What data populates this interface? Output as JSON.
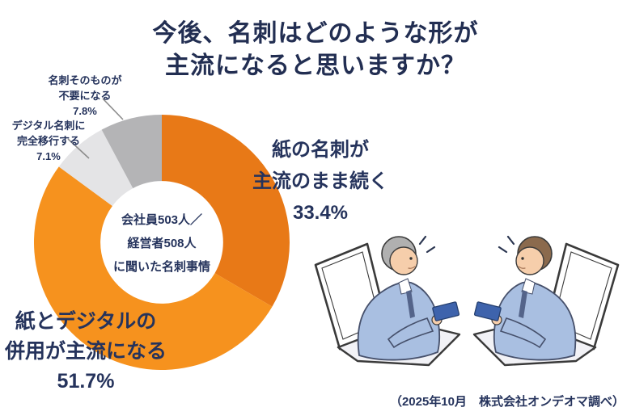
{
  "title": {
    "line1": "今後、名刺はどのような形が",
    "line2": "主流になると思いますか？"
  },
  "source_note": "（2025年10月　株式会社オンデオマ調べ）",
  "colors": {
    "text_navy": "#222E52",
    "orange_dark": "#E87917",
    "orange_bright": "#F6921E",
    "gray_light": "#E4E4E6",
    "gray_medium": "#B4B4B6",
    "leader_line": "#8C8C8C"
  },
  "chart_data": {
    "type": "pie",
    "subtype": "donut",
    "title": "今後、名刺はどのような形が主流になると思いますか？",
    "start_angle_deg": 0,
    "direction": "clockwise",
    "inner_radius_ratio": 0.48,
    "center_label": {
      "line1": "会社員503人／",
      "line2": "経営者508人",
      "line3": "に聞いた名刺事情"
    },
    "segments": [
      {
        "label": "紙の名刺が主流のまま続く",
        "label_line1": "紙の名刺が",
        "label_line2": "主流のまま続く",
        "value": 33.4,
        "pct_label": "33.4%",
        "color": "#E87917"
      },
      {
        "label": "紙とデジタルの併用が主流になる",
        "label_line1": "紙とデジタルの",
        "label_line2": "併用が主流になる",
        "value": 51.7,
        "pct_label": "51.7%",
        "color": "#F6921E"
      },
      {
        "label": "デジタル名刺に完全移行する",
        "label_line1": "デジタル名刺に",
        "label_line2": "完全移行する",
        "value": 7.1,
        "pct_label": "7.1%",
        "color": "#E4E4E6"
      },
      {
        "label": "名刺そのものが不要になる",
        "label_line1": "名刺そのものが",
        "label_line2": "不要になる",
        "value": 7.8,
        "pct_label": "7.8%",
        "color": "#B4B4B6"
      }
    ]
  },
  "illustration": {
    "name": "online-business-card-exchange-illustration"
  }
}
